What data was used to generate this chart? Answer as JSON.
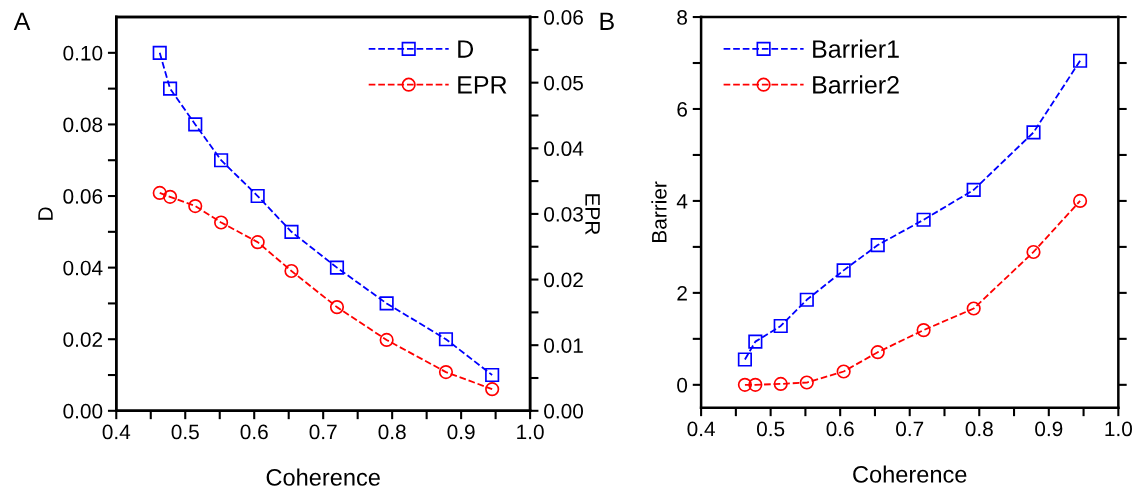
{
  "chart_data": [
    {
      "type": "line",
      "xlabel": "Coherence",
      "ylabel": "D",
      "y2label": "EPR",
      "annotations": [
        "A"
      ],
      "x": [
        0.463,
        0.478,
        0.5145,
        0.552,
        0.605,
        0.654,
        0.72,
        0.792,
        0.878,
        0.945
      ],
      "series": [
        {
          "name": "D",
          "color": "#0000ff",
          "marker": "square",
          "values": [
            0.1,
            0.09,
            0.08,
            0.07,
            0.06,
            0.05,
            0.04,
            0.03,
            0.02,
            0.01
          ]
        },
        {
          "name": "EPR",
          "color": "#ff0000",
          "marker": "circle",
          "axis": "y2",
          "values": [
            0.0332,
            0.0326,
            0.0312,
            0.0287,
            0.0257,
            0.0213,
            0.0158,
            0.0108,
            0.0059,
            0.0033
          ]
        }
      ],
      "line_style": "dashed",
      "legend": "top right",
      "grid": false,
      "xlim": [
        0.4,
        1.0
      ],
      "xticks": [
        0.4,
        {
          "value": 0.45,
          "label": null
        },
        0.5,
        {
          "value": 0.55,
          "label": null
        },
        0.6,
        {
          "value": 0.65,
          "label": null
        },
        0.7,
        {
          "value": 0.75,
          "label": null
        },
        0.8,
        {
          "value": 0.85,
          "label": null
        },
        0.9,
        {
          "value": 0.95,
          "label": null
        },
        {
          "value": 1.0,
          "label": "1.0"
        }
      ],
      "ylim": [
        0,
        0.11
      ],
      "yticks": [
        {
          "value": 0,
          "label": "0.00"
        },
        {
          "value": 0.01,
          "label": null
        },
        {
          "value": 0.02,
          "label": "0.02"
        },
        {
          "value": 0.03,
          "label": null
        },
        {
          "value": 0.04,
          "label": "0.04"
        },
        {
          "value": 0.05,
          "label": null
        },
        {
          "value": 0.06,
          "label": "0.06"
        },
        {
          "value": 0.07,
          "label": null
        },
        {
          "value": 0.08,
          "label": "0.08"
        },
        {
          "value": 0.09,
          "label": null
        },
        {
          "value": 0.1,
          "label": "0.10"
        }
      ],
      "y2lim": [
        0,
        0.06
      ],
      "y2ticks": [
        {
          "value": 0,
          "label": "0.00"
        },
        {
          "value": 0.005,
          "label": null
        },
        {
          "value": 0.01,
          "label": "0.01"
        },
        {
          "value": 0.015,
          "label": null
        },
        {
          "value": 0.02,
          "label": "0.02"
        },
        {
          "value": 0.025,
          "label": null
        },
        {
          "value": 0.03,
          "label": "0.03"
        },
        {
          "value": 0.035,
          "label": null
        },
        {
          "value": 0.04,
          "label": "0.04"
        },
        {
          "value": 0.045,
          "label": null
        },
        {
          "value": 0.05,
          "label": "0.05"
        },
        {
          "value": 0.055,
          "label": null
        },
        {
          "value": 0.06,
          "label": "0.06"
        }
      ]
    },
    {
      "type": "line",
      "xlabel": "Coherence",
      "ylabel": "Barrier",
      "annotations": [
        "B"
      ],
      "x": [
        0.463,
        0.478,
        0.5145,
        0.552,
        0.605,
        0.654,
        0.72,
        0.792,
        0.878,
        0.945
      ],
      "series": [
        {
          "name": "Barrier1",
          "color": "#0000ff",
          "marker": "square",
          "values": [
            0.55,
            0.94,
            1.28,
            1.85,
            2.49,
            3.04,
            3.59,
            4.24,
            5.49,
            7.05
          ]
        },
        {
          "name": "Barrier2",
          "color": "#ff0000",
          "marker": "circle",
          "values": [
            0,
            0,
            0.02,
            0.05,
            0.29,
            0.71,
            1.19,
            1.66,
            2.89,
            4.0
          ]
        }
      ],
      "line_style": "dashed",
      "legend": "top left",
      "grid": false,
      "xlim": [
        0.4,
        1.0
      ],
      "xticks": [
        0.4,
        {
          "value": 0.45,
          "label": null
        },
        0.5,
        {
          "value": 0.55,
          "label": null
        },
        0.6,
        {
          "value": 0.65,
          "label": null
        },
        0.7,
        {
          "value": 0.75,
          "label": null
        },
        0.8,
        {
          "value": 0.85,
          "label": null
        },
        0.9,
        {
          "value": 0.95,
          "label": null
        },
        {
          "value": 1.0,
          "label": "1.0"
        }
      ],
      "ylim": [
        -0.5,
        8
      ],
      "yticks": [
        0,
        {
          "value": 1,
          "label": null
        },
        2,
        {
          "value": 3,
          "label": null
        },
        4,
        {
          "value": 5,
          "label": null
        },
        6,
        {
          "value": 7,
          "label": null
        },
        8
      ]
    }
  ]
}
